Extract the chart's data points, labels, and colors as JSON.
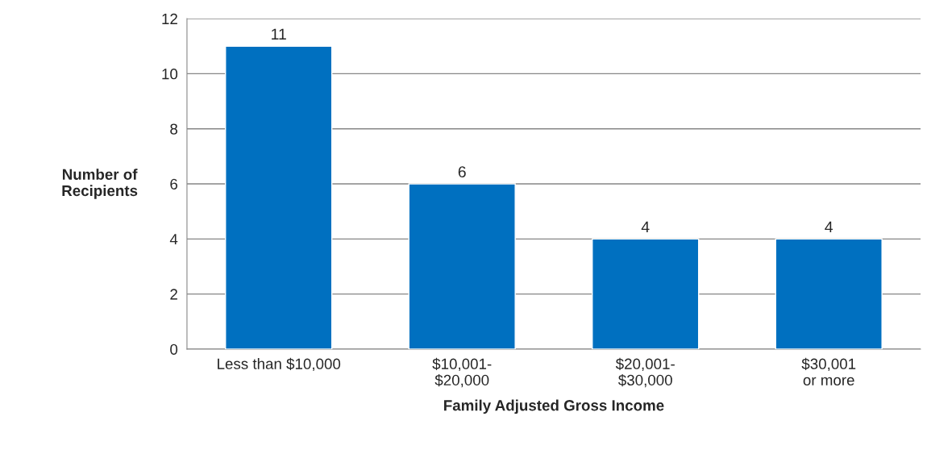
{
  "chart_data": {
    "type": "bar",
    "categories": [
      "Less than $10,000",
      "$10,001-\n$20,000",
      "$20,001-\n$30,000",
      "$30,001\nor more"
    ],
    "values": [
      11,
      6,
      4,
      4
    ],
    "color": "#0070c0",
    "xlabel": "Family Adjusted Gross Income",
    "ylabel": "Number of\nRecipients",
    "ylim": [
      0,
      12
    ],
    "yticks": [
      0,
      2,
      4,
      6,
      8,
      10,
      12
    ],
    "grid": "y",
    "data_labels": true
  }
}
